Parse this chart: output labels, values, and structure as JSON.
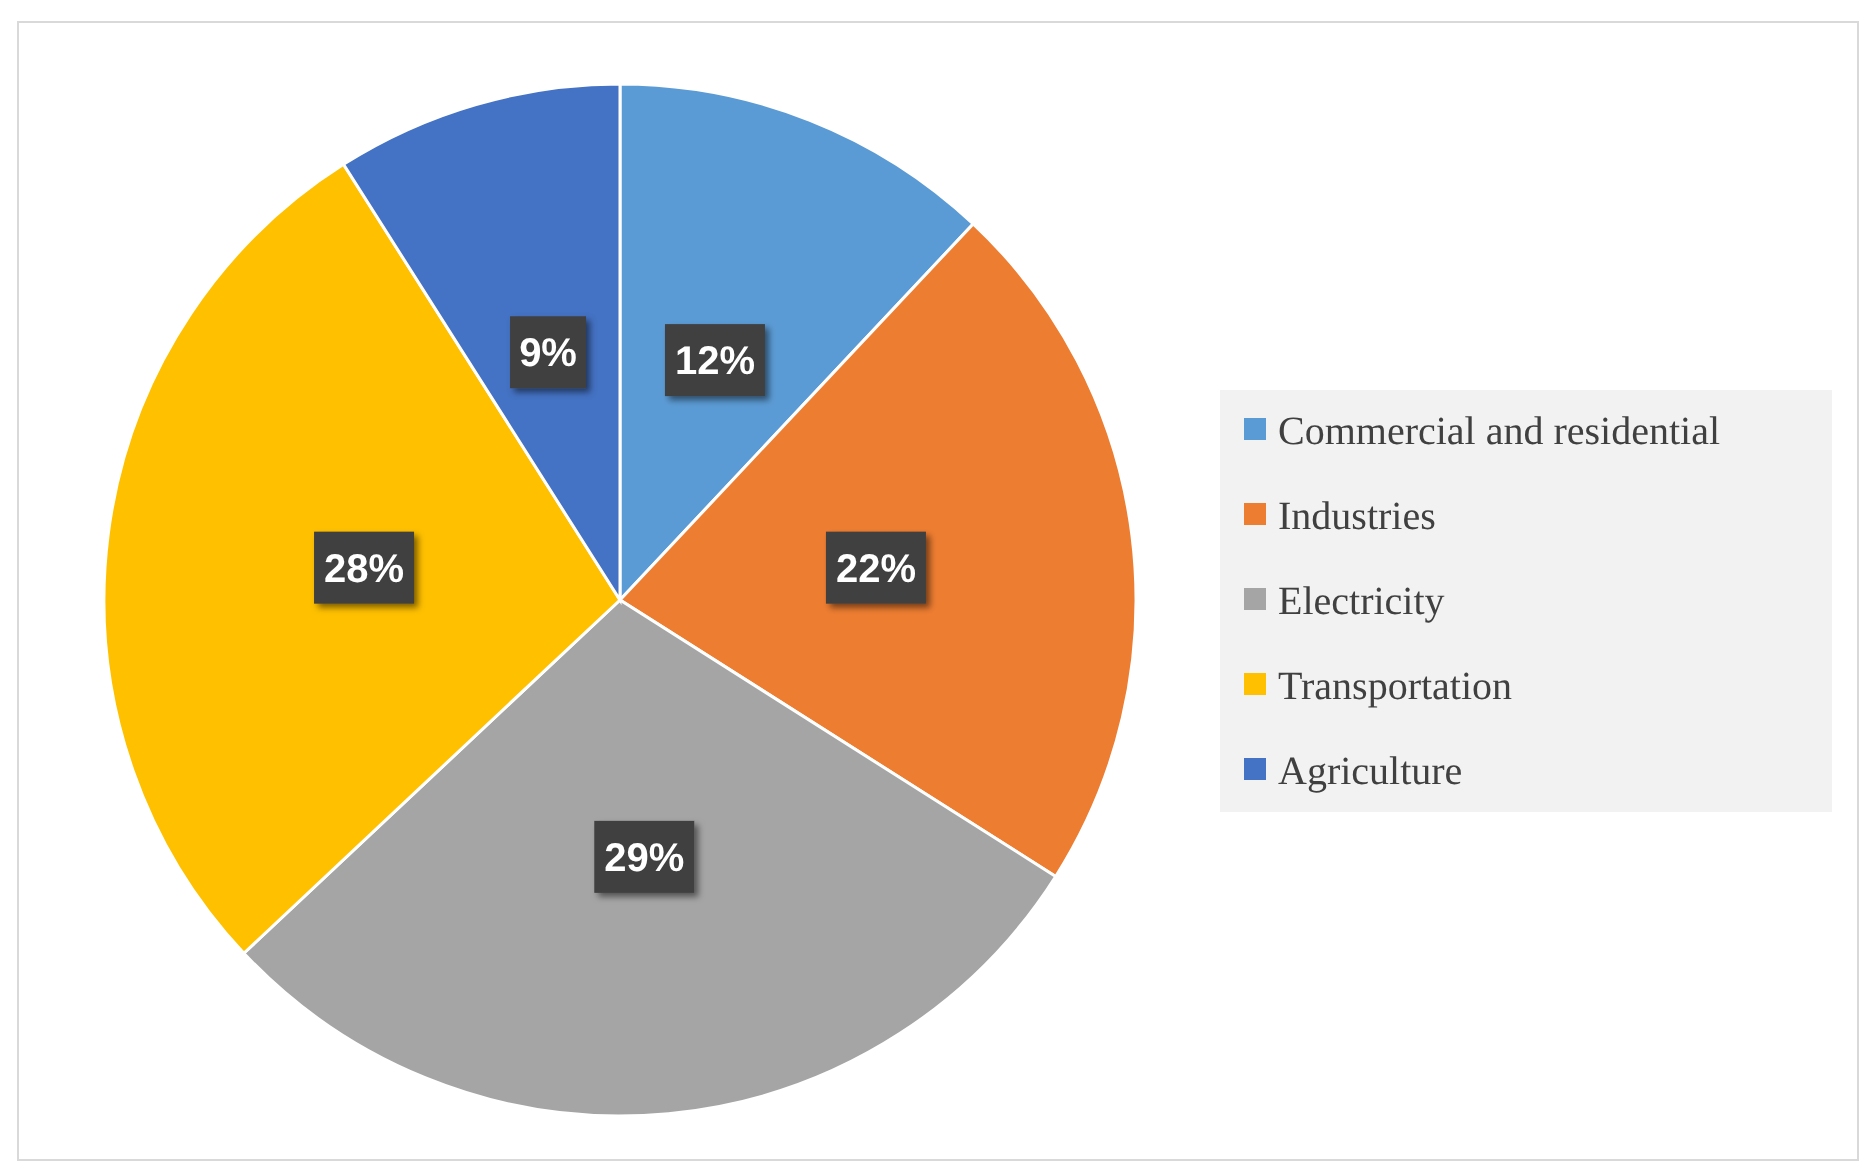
{
  "chart_data": {
    "type": "pie",
    "categories": [
      "Commercial and residential",
      "Industries",
      "Electricity",
      "Transportation",
      "Agriculture"
    ],
    "values": [
      12,
      22,
      29,
      28,
      9
    ],
    "colors": [
      "#5b9bd5",
      "#ed7d31",
      "#a5a5a5",
      "#ffc000",
      "#4472c4"
    ],
    "value_labels": [
      "12%",
      "22%",
      "29%",
      "28%",
      "9%"
    ],
    "legend": "right"
  }
}
